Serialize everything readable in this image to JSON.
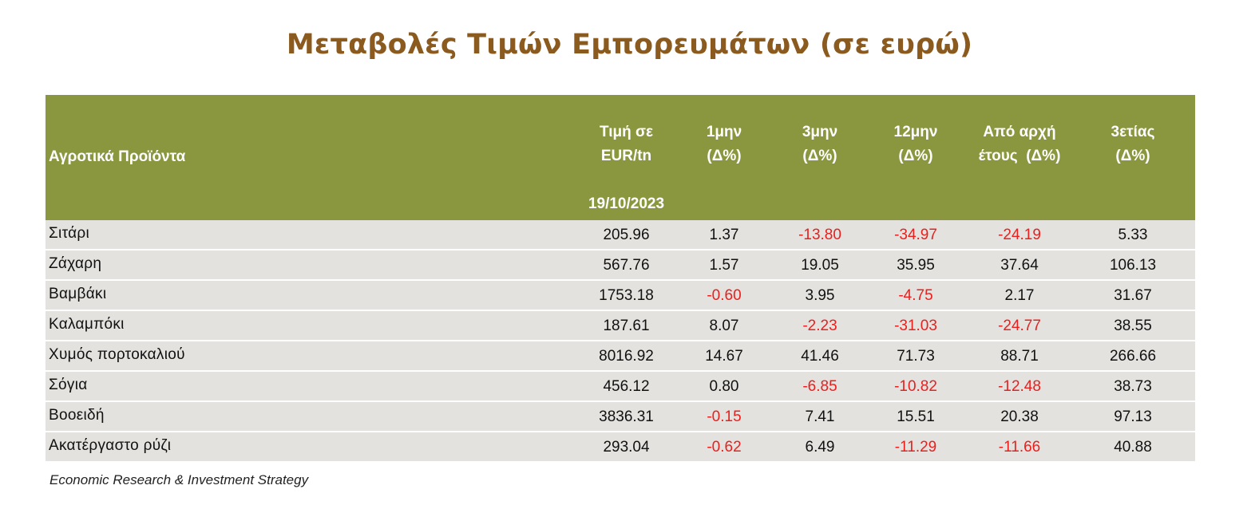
{
  "title": "Μεταβολές Τιμών Εμπορευμάτων (σε ευρώ)",
  "table": {
    "header": {
      "product_col": "Αγροτικά Προϊόντα",
      "price_line1": "Τιμή σε",
      "price_line2": "EUR/tn",
      "price_date": "19/10/2023",
      "m1_line1": "1μην",
      "m1_line2": "(Δ%)",
      "m3_line1": "3μην",
      "m3_line2": "(Δ%)",
      "m12_line1": "12μην",
      "m12_line2": "(Δ%)",
      "ytd_line1": "Από αρχή",
      "ytd_line2": "έτους  (Δ%)",
      "y3_line1": "3ετίας",
      "y3_line2": "(Δ%)"
    },
    "rows": [
      {
        "name": "Σιτάρι",
        "price": "205.96",
        "m1": "1.37",
        "m3": "-13.80",
        "m12": "-34.97",
        "ytd": "-24.19",
        "y3": "5.33"
      },
      {
        "name": "Ζάχαρη",
        "price": "567.76",
        "m1": "1.57",
        "m3": "19.05",
        "m12": "35.95",
        "ytd": "37.64",
        "y3": "106.13"
      },
      {
        "name": "Βαμβάκι",
        "price": "1753.18",
        "m1": "-0.60",
        "m3": "3.95",
        "m12": "-4.75",
        "ytd": "2.17",
        "y3": "31.67"
      },
      {
        "name": "Καλαμπόκι",
        "price": "187.61",
        "m1": "8.07",
        "m3": "-2.23",
        "m12": "-31.03",
        "ytd": "-24.77",
        "y3": "38.55"
      },
      {
        "name": "Χυμός πορτοκαλιού",
        "price": "8016.92",
        "m1": "14.67",
        "m3": "41.46",
        "m12": "71.73",
        "ytd": "88.71",
        "y3": "266.66"
      },
      {
        "name": "Σόγια",
        "price": "456.12",
        "m1": "0.80",
        "m3": "-6.85",
        "m12": "-10.82",
        "ytd": "-12.48",
        "y3": "38.73"
      },
      {
        "name": "Βοοειδή",
        "price": "3836.31",
        "m1": "-0.15",
        "m3": "7.41",
        "m12": "15.51",
        "ytd": "20.38",
        "y3": "97.13"
      },
      {
        "name": "Ακατέργαστο ρύζι",
        "price": "293.04",
        "m1": "-0.62",
        "m3": "6.49",
        "m12": "-11.29",
        "ytd": "-11.66",
        "y3": "40.88"
      }
    ]
  },
  "footer": "Economic Research & Investment Strategy",
  "colors": {
    "title": "#8B5A1E",
    "header_bg": "#8B973F",
    "row_bg": "#E3E2DF",
    "negative": "#E8201E"
  }
}
